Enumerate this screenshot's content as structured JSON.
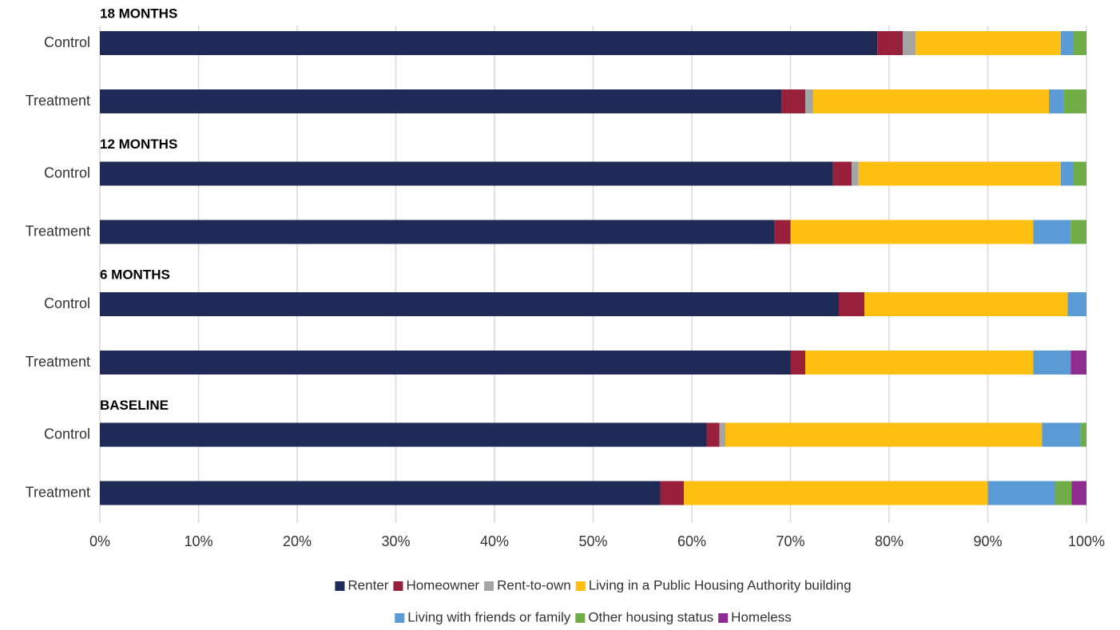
{
  "chart_data": {
    "type": "stacked_barh",
    "categories": [
      "Control",
      "Treatment",
      "Control",
      "Treatment",
      "Control",
      "Treatment",
      "Control",
      "Treatment"
    ],
    "group_labels": [
      "18 MONTHS",
      "12 MONTHS",
      "6 MONTHS",
      "BASELINE"
    ],
    "xlim": [
      0,
      100
    ],
    "xticks": [
      {
        "value": 0,
        "label": "0%"
      },
      {
        "value": 10,
        "label": "10%"
      },
      {
        "value": 20,
        "label": "20%"
      },
      {
        "value": 30,
        "label": "30%"
      },
      {
        "value": 40,
        "label": "40%"
      },
      {
        "value": 50,
        "label": "50%"
      },
      {
        "value": 60,
        "label": "60%"
      },
      {
        "value": 70,
        "label": "70%"
      },
      {
        "value": 80,
        "label": "80%"
      },
      {
        "value": 90,
        "label": "90%"
      },
      {
        "value": 100,
        "label": "100%"
      }
    ],
    "grid": true,
    "legend": "bottom",
    "series": [
      {
        "name": "Renter",
        "color": "#1f2a56",
        "values": [
          78.8,
          69.1,
          74.3,
          68.4,
          74.9,
          70.0,
          61.5,
          56.8
        ]
      },
      {
        "name": "Homeowner",
        "color": "#98203a",
        "values": [
          2.6,
          2.4,
          1.9,
          1.6,
          2.6,
          1.5,
          1.3,
          2.4
        ]
      },
      {
        "name": "Rent-to-own",
        "color": "#a5a5a5",
        "values": [
          1.3,
          0.8,
          0.7,
          0,
          0,
          0,
          0.6,
          0
        ]
      },
      {
        "name": "Living in a Public Housing Authority building",
        "color": "#fdbf11",
        "values": [
          14.7,
          23.9,
          20.5,
          24.6,
          20.6,
          23.1,
          32.1,
          30.8
        ]
      },
      {
        "name": "Living with friends or family",
        "color": "#5b9bd5",
        "values": [
          1.3,
          1.5,
          1.3,
          3.8,
          1.9,
          3.8,
          3.9,
          6.8
        ]
      },
      {
        "name": "Other housing status",
        "color": "#70ad47",
        "values": [
          1.3,
          2.3,
          1.3,
          1.6,
          0,
          0,
          0.6,
          1.7
        ]
      },
      {
        "name": "Homeless",
        "color": "#8e2c91",
        "values": [
          0,
          0,
          0,
          0,
          0,
          1.6,
          0,
          1.5
        ]
      }
    ]
  }
}
